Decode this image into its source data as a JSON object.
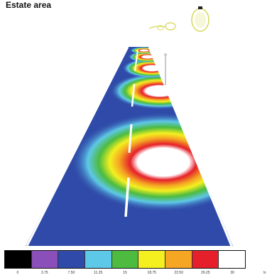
{
  "title": "Estate area",
  "legend": {
    "colors": [
      "#000000",
      "#8a4fb8",
      "#2f4aa8",
      "#5ec8e8",
      "#4cbb3f",
      "#f4f020",
      "#f5a623",
      "#e5202a",
      "#ffffff"
    ],
    "labels": [
      "0",
      "3.75",
      "7.50",
      "11.25",
      "15",
      "18.75",
      "22.50",
      "26.25",
      "30"
    ],
    "unit": "lx"
  }
}
